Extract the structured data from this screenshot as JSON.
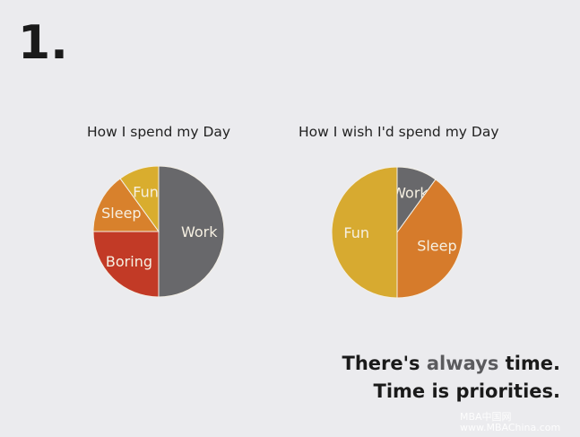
{
  "slide_number": "1.",
  "chart_data": [
    {
      "type": "pie",
      "title": "How I spend my Day",
      "start": "top",
      "direction": "clockwise",
      "slices": [
        {
          "label": "Work",
          "value": 50,
          "color": "#68686b"
        },
        {
          "label": "Boring",
          "value": 25,
          "color": "#c23a26"
        },
        {
          "label": "Sleep",
          "value": 15,
          "color": "#d8812c"
        },
        {
          "label": "Fun",
          "value": 10,
          "color": "#d9ad2e"
        }
      ]
    },
    {
      "type": "pie",
      "title": "How I wish I'd spend my Day",
      "start": "top",
      "direction": "clockwise",
      "slices": [
        {
          "label": "Work",
          "value": 10,
          "color": "#68686b"
        },
        {
          "label": "Sleep",
          "value": 40,
          "color": "#d67b2b"
        },
        {
          "label": "Fun",
          "value": 50,
          "color": "#d7aa30"
        }
      ]
    }
  ],
  "tagline": {
    "line1_a": "There's ",
    "line1_b": "always",
    "line1_c": " time.",
    "line2": "Time is priorities."
  },
  "watermark": {
    "line1": "MBA中国网",
    "line2": "www.MBAChina.com"
  }
}
